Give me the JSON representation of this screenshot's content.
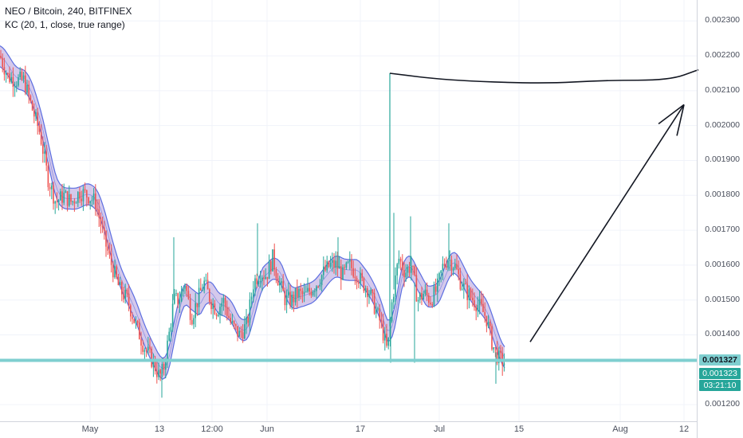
{
  "legend": {
    "symbol": "NEO / Bitcoin, 240, BITFINEX",
    "indicator": "KC (20, 1, close, true range)"
  },
  "price_axis": [
    "0.002300",
    "0.002200",
    "0.002100",
    "0.002000",
    "0.001900",
    "0.001800",
    "0.001700",
    "0.001600",
    "0.001500",
    "0.001400",
    "0.001200"
  ],
  "tags": {
    "horizontal_line_price": "0.001327",
    "last_price": "0.001323",
    "countdown": "03:21:10"
  },
  "time_axis": [
    "May",
    "13",
    "12:00",
    "Jun",
    "17",
    "Jul",
    "15",
    "Aug",
    "12"
  ],
  "colors": {
    "up": "#26a69a",
    "down": "#ef5350",
    "keltner_band": "#5b6ee1",
    "keltner_fill": "#b39ddb",
    "support_line": "#7fcfd0",
    "drawing": "#131722"
  },
  "chart_data": {
    "type": "candlestick",
    "title": "NEO / Bitcoin, 240, BITFINEX",
    "indicator": "KC (20, 1, close, true range)",
    "ylim": [
      0.00115,
      0.00236
    ],
    "x_ticks": [
      "May",
      "13",
      "12:00",
      "Jun",
      "17",
      "Jul",
      "15",
      "Aug",
      "12"
    ],
    "horizontal_line": 0.001327,
    "last_price": 0.001323,
    "close_path": [
      [
        0,
        0.0022
      ],
      [
        10,
        0.00214
      ],
      [
        20,
        0.00213
      ],
      [
        30,
        0.00213
      ],
      [
        40,
        0.00205
      ],
      [
        50,
        0.00198
      ],
      [
        60,
        0.00185
      ],
      [
        70,
        0.00178
      ],
      [
        80,
        0.0018
      ],
      [
        90,
        0.00178
      ],
      [
        100,
        0.00181
      ],
      [
        110,
        0.0018
      ],
      [
        120,
        0.00178
      ],
      [
        130,
        0.00168
      ],
      [
        140,
        0.0016
      ],
      [
        150,
        0.00153
      ],
      [
        160,
        0.0015
      ],
      [
        170,
        0.00143
      ],
      [
        180,
        0.00137
      ],
      [
        190,
        0.00133
      ],
      [
        200,
        0.00128
      ],
      [
        205,
        0.0013
      ],
      [
        212,
        0.0014
      ],
      [
        218,
        0.0015
      ],
      [
        225,
        0.0015
      ],
      [
        232,
        0.00155
      ],
      [
        240,
        0.00145
      ],
      [
        248,
        0.0015
      ],
      [
        256,
        0.00155
      ],
      [
        264,
        0.0015
      ],
      [
        272,
        0.00147
      ],
      [
        280,
        0.0015
      ],
      [
        290,
        0.00143
      ],
      [
        300,
        0.0014
      ],
      [
        310,
        0.00143
      ],
      [
        318,
        0.00155
      ],
      [
        326,
        0.00158
      ],
      [
        334,
        0.00157
      ],
      [
        342,
        0.00162
      ],
      [
        350,
        0.00155
      ],
      [
        358,
        0.0015
      ],
      [
        366,
        0.0015
      ],
      [
        374,
        0.00152
      ],
      [
        382,
        0.00151
      ],
      [
        390,
        0.00153
      ],
      [
        398,
        0.00155
      ],
      [
        406,
        0.00158
      ],
      [
        414,
        0.0016
      ],
      [
        422,
        0.0016
      ],
      [
        430,
        0.00157
      ],
      [
        438,
        0.0016
      ],
      [
        446,
        0.00158
      ],
      [
        454,
        0.00155
      ],
      [
        462,
        0.00153
      ],
      [
        470,
        0.00148
      ],
      [
        478,
        0.00143
      ],
      [
        486,
        0.00135
      ],
      [
        492,
        0.0015
      ],
      [
        500,
        0.00162
      ],
      [
        508,
        0.00158
      ],
      [
        516,
        0.0016
      ],
      [
        524,
        0.0015
      ],
      [
        532,
        0.00152
      ],
      [
        540,
        0.0015
      ],
      [
        548,
        0.00153
      ],
      [
        556,
        0.0016
      ],
      [
        562,
        0.00162
      ],
      [
        570,
        0.0016
      ],
      [
        578,
        0.00155
      ],
      [
        586,
        0.00152
      ],
      [
        594,
        0.0015
      ],
      [
        602,
        0.00148
      ],
      [
        610,
        0.00145
      ],
      [
        618,
        0.00137
      ],
      [
        626,
        0.00133
      ],
      [
        634,
        0.00132
      ]
    ],
    "spike": {
      "x": 489,
      "high": 0.00215
    },
    "drawings": [
      {
        "type": "curve",
        "points": [
          [
            489,
            0.00215
          ],
          [
            560,
            0.00213
          ],
          [
            680,
            0.00212
          ],
          [
            760,
            0.00213
          ],
          [
            840,
            0.00213
          ],
          [
            876,
            0.00216
          ]
        ]
      },
      {
        "type": "arrow",
        "from": [
          665,
          0.00138
        ],
        "to": [
          858,
          0.00206
        ]
      }
    ]
  }
}
